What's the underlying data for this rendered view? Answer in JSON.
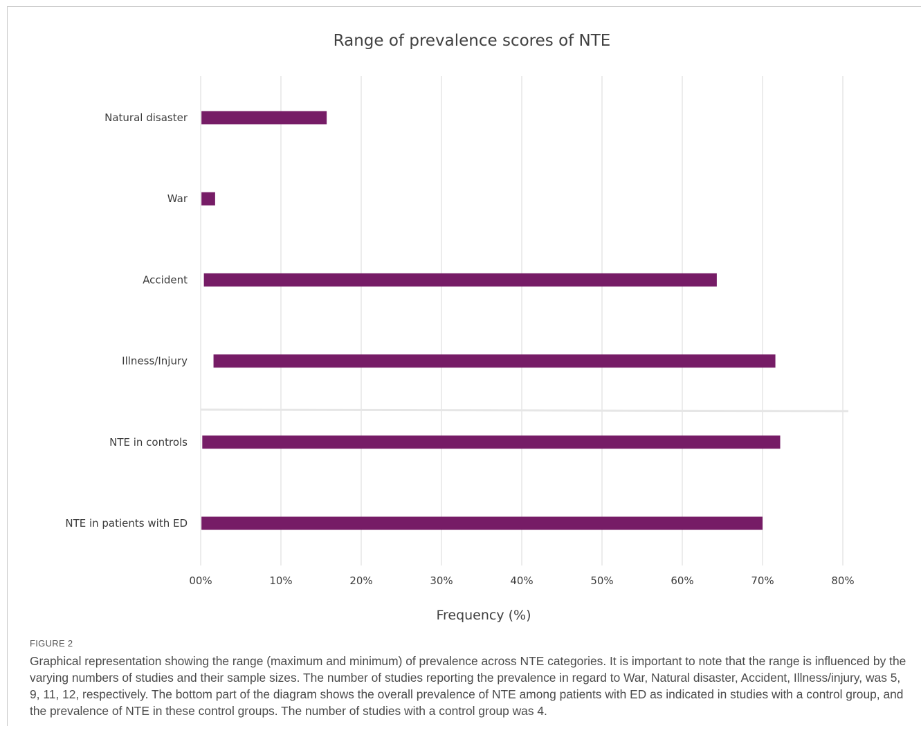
{
  "chart_data": {
    "type": "bar",
    "title": "Range of prevalence scores of NTE",
    "xlabel": "Frequency (%)",
    "ylabel": "",
    "xlim": [
      0,
      80
    ],
    "x_ticks": [
      "00%",
      "10%",
      "20%",
      "30%",
      "40%",
      "50%",
      "60%",
      "70%",
      "80%"
    ],
    "grid": "vertical",
    "orientation": "horizontal",
    "bar_color": "#761c66",
    "divider_after_category": "Illness/Injury",
    "categories": [
      "Natural disaster",
      "War",
      "Accident",
      "Illness/Injury",
      "NTE in controls",
      "NTE in patients with ED"
    ],
    "ranges": [
      {
        "min": 0.1,
        "max": 15.7
      },
      {
        "min": 0.1,
        "max": 1.8
      },
      {
        "min": 0.4,
        "max": 64.3
      },
      {
        "min": 1.6,
        "max": 71.6
      },
      {
        "min": 0.2,
        "max": 72.2
      },
      {
        "min": 0.1,
        "max": 70.0
      }
    ]
  },
  "figure": {
    "label": "FIGURE 2",
    "caption": "Graphical representation showing the range (maximum and minimum) of prevalence across NTE categories. It is important to note that the range is influenced by the varying numbers of studies and their sample sizes. The number of studies reporting the prevalence in regard to War, Natural disaster, Accident, Illness/injury, was 5, 9, 11, 12, respectively. The bottom part of the diagram shows the overall prevalence of NTE among patients with ED as indicated in studies with a control group, and the prevalence of NTE in these control groups. The number of studies with a control group was 4."
  }
}
